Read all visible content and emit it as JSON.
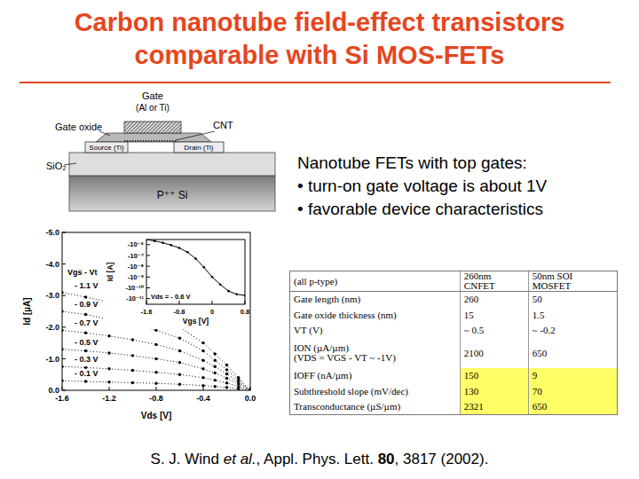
{
  "title": [
    "Carbon nanotube field-effect transistors",
    "comparable with Si MOS-FETs"
  ],
  "diagram": {
    "gate": "Gate",
    "gate_metal": "(Al or Ti)",
    "gate_oxide": "Gate oxide",
    "cnt": "CNT",
    "substrate_oxide": "SiO₂",
    "source": "Source (Ti)",
    "drain": "Drain (Ti)",
    "substrate": "P⁺⁺ Si"
  },
  "notes": {
    "heading": "Nanotube FETs with top gates:",
    "bullets": [
      "• turn-on gate voltage is about 1V",
      "• favorable device characteristics"
    ]
  },
  "table": {
    "header": [
      "(all p-type)",
      "260nm CNFET",
      "50nm SOI MOSFET"
    ],
    "rows": [
      [
        "Gate length (nm)",
        260,
        50
      ],
      [
        "Gate oxide thickness (nm)",
        15,
        1.5
      ],
      [
        "VT (V)",
        "~ 0.5",
        "~ -0.2"
      ],
      [
        "ION (µA/µm)\n(VDS = VGS - VT ~ -1V)",
        2100,
        650
      ],
      [
        "IOFF (nA/µm)",
        150,
        9
      ],
      [
        "Subthreshold slope (mV/dec)",
        130,
        70
      ],
      [
        "Transconductance (µS/µm)",
        2321,
        650
      ]
    ]
  },
  "citation": [
    "S. J. Wind ",
    "et al.",
    ", Appl. Phys. Lett. ",
    "80",
    ", 3817 (2002)."
  ],
  "chart_data": [
    {
      "type": "line",
      "x_label": "Vds [V]",
      "y_label": "Id [µA]",
      "annotations": [
        "Vgs - Vt"
      ],
      "x": [
        -1.6,
        -1.4,
        -1.2,
        -1.0,
        -0.8,
        -0.6,
        -0.4,
        -0.3,
        -0.2,
        -0.1,
        0.0
      ],
      "series": [
        {
          "name": "- 1.1 V",
          "color": "#000000",
          "values": [
            -3.1,
            -2.95,
            -2.8,
            -2.6,
            -2.35,
            -2.0,
            -1.5,
            -1.15,
            -0.8,
            -0.4,
            0
          ]
        },
        {
          "name": "- 0.9 V",
          "color": "#000000",
          "values": [
            -2.5,
            -2.4,
            -2.25,
            -2.1,
            -1.9,
            -1.65,
            -1.25,
            -0.95,
            -0.65,
            -0.33,
            0
          ]
        },
        {
          "name": "- 0.7 V",
          "color": "#000000",
          "values": [
            -1.9,
            -1.82,
            -1.72,
            -1.6,
            -1.45,
            -1.25,
            -0.95,
            -0.75,
            -0.52,
            -0.26,
            0
          ]
        },
        {
          "name": "- 0.5 V",
          "color": "#000000",
          "values": [
            -1.3,
            -1.25,
            -1.18,
            -1.1,
            -1.0,
            -0.88,
            -0.68,
            -0.55,
            -0.38,
            -0.2,
            0
          ]
        },
        {
          "name": "- 0.3 V",
          "color": "#000000",
          "values": [
            -0.75,
            -0.72,
            -0.68,
            -0.63,
            -0.57,
            -0.5,
            -0.4,
            -0.32,
            -0.23,
            -0.12,
            0
          ]
        },
        {
          "name": "- 0.1 V",
          "color": "#000000",
          "values": [
            -0.3,
            -0.28,
            -0.26,
            -0.24,
            -0.22,
            -0.19,
            -0.15,
            -0.12,
            -0.09,
            -0.05,
            0
          ]
        }
      ],
      "xlim": [
        -1.6,
        0
      ],
      "xticks": [
        -1.6,
        -1.2,
        -0.8,
        -0.4,
        {
          "value": 0,
          "label": "0.0"
        }
      ],
      "ylim": [
        0,
        -5
      ],
      "yticks": [
        {
          "value": -5,
          "label": "-5.0"
        },
        {
          "value": -4,
          "label": "-4.0"
        },
        {
          "value": -3,
          "label": "-3.0"
        },
        {
          "value": -2,
          "label": "-2.0"
        },
        {
          "value": -1,
          "label": "-1.0"
        },
        {
          "value": 0,
          "label": "0.0"
        }
      ],
      "marker": "circle",
      "line_style": "dotted"
    },
    {
      "type": "line",
      "log": "y",
      "x_label": "Vgs [V]",
      "y_label": "Id [A]",
      "annotations": [
        "Vds = - 0.6 V"
      ],
      "x": [
        -1.6,
        -1.4,
        -1.2,
        -1.0,
        -0.8,
        -0.6,
        -0.4,
        -0.2,
        0,
        0.2,
        0.4,
        0.6,
        0.8
      ],
      "series": [
        {
          "color": "#000000",
          "values": [
            -3e-06,
            -2.2e-06,
            -1.5e-06,
            -9e-07,
            -5e-07,
            -2e-07,
            -5e-08,
            -8e-09,
            -1e-09,
            -2e-10,
            -5e-11,
            -2.5e-11,
            -2e-11
          ]
        }
      ],
      "xlim": [
        -1.6,
        0.8
      ],
      "xticks": [
        -1.6,
        -0.8,
        0,
        0.8
      ],
      "ylim": [
        -3e-12,
        -3e-06
      ],
      "yticks": [
        {
          "value": -1e-06,
          "label": "-10⁻⁶"
        },
        {
          "value": -1e-07,
          "label": "-10⁻⁷"
        },
        {
          "value": -1e-08,
          "label": "-10⁻⁸"
        },
        {
          "value": -1e-09,
          "label": "-10⁻⁹"
        },
        {
          "value": -1e-10,
          "label": "-10⁻¹⁰"
        },
        {
          "value": -1e-11,
          "label": "-10⁻¹¹"
        }
      ],
      "marker": "circle",
      "line_style": "solid"
    }
  ]
}
